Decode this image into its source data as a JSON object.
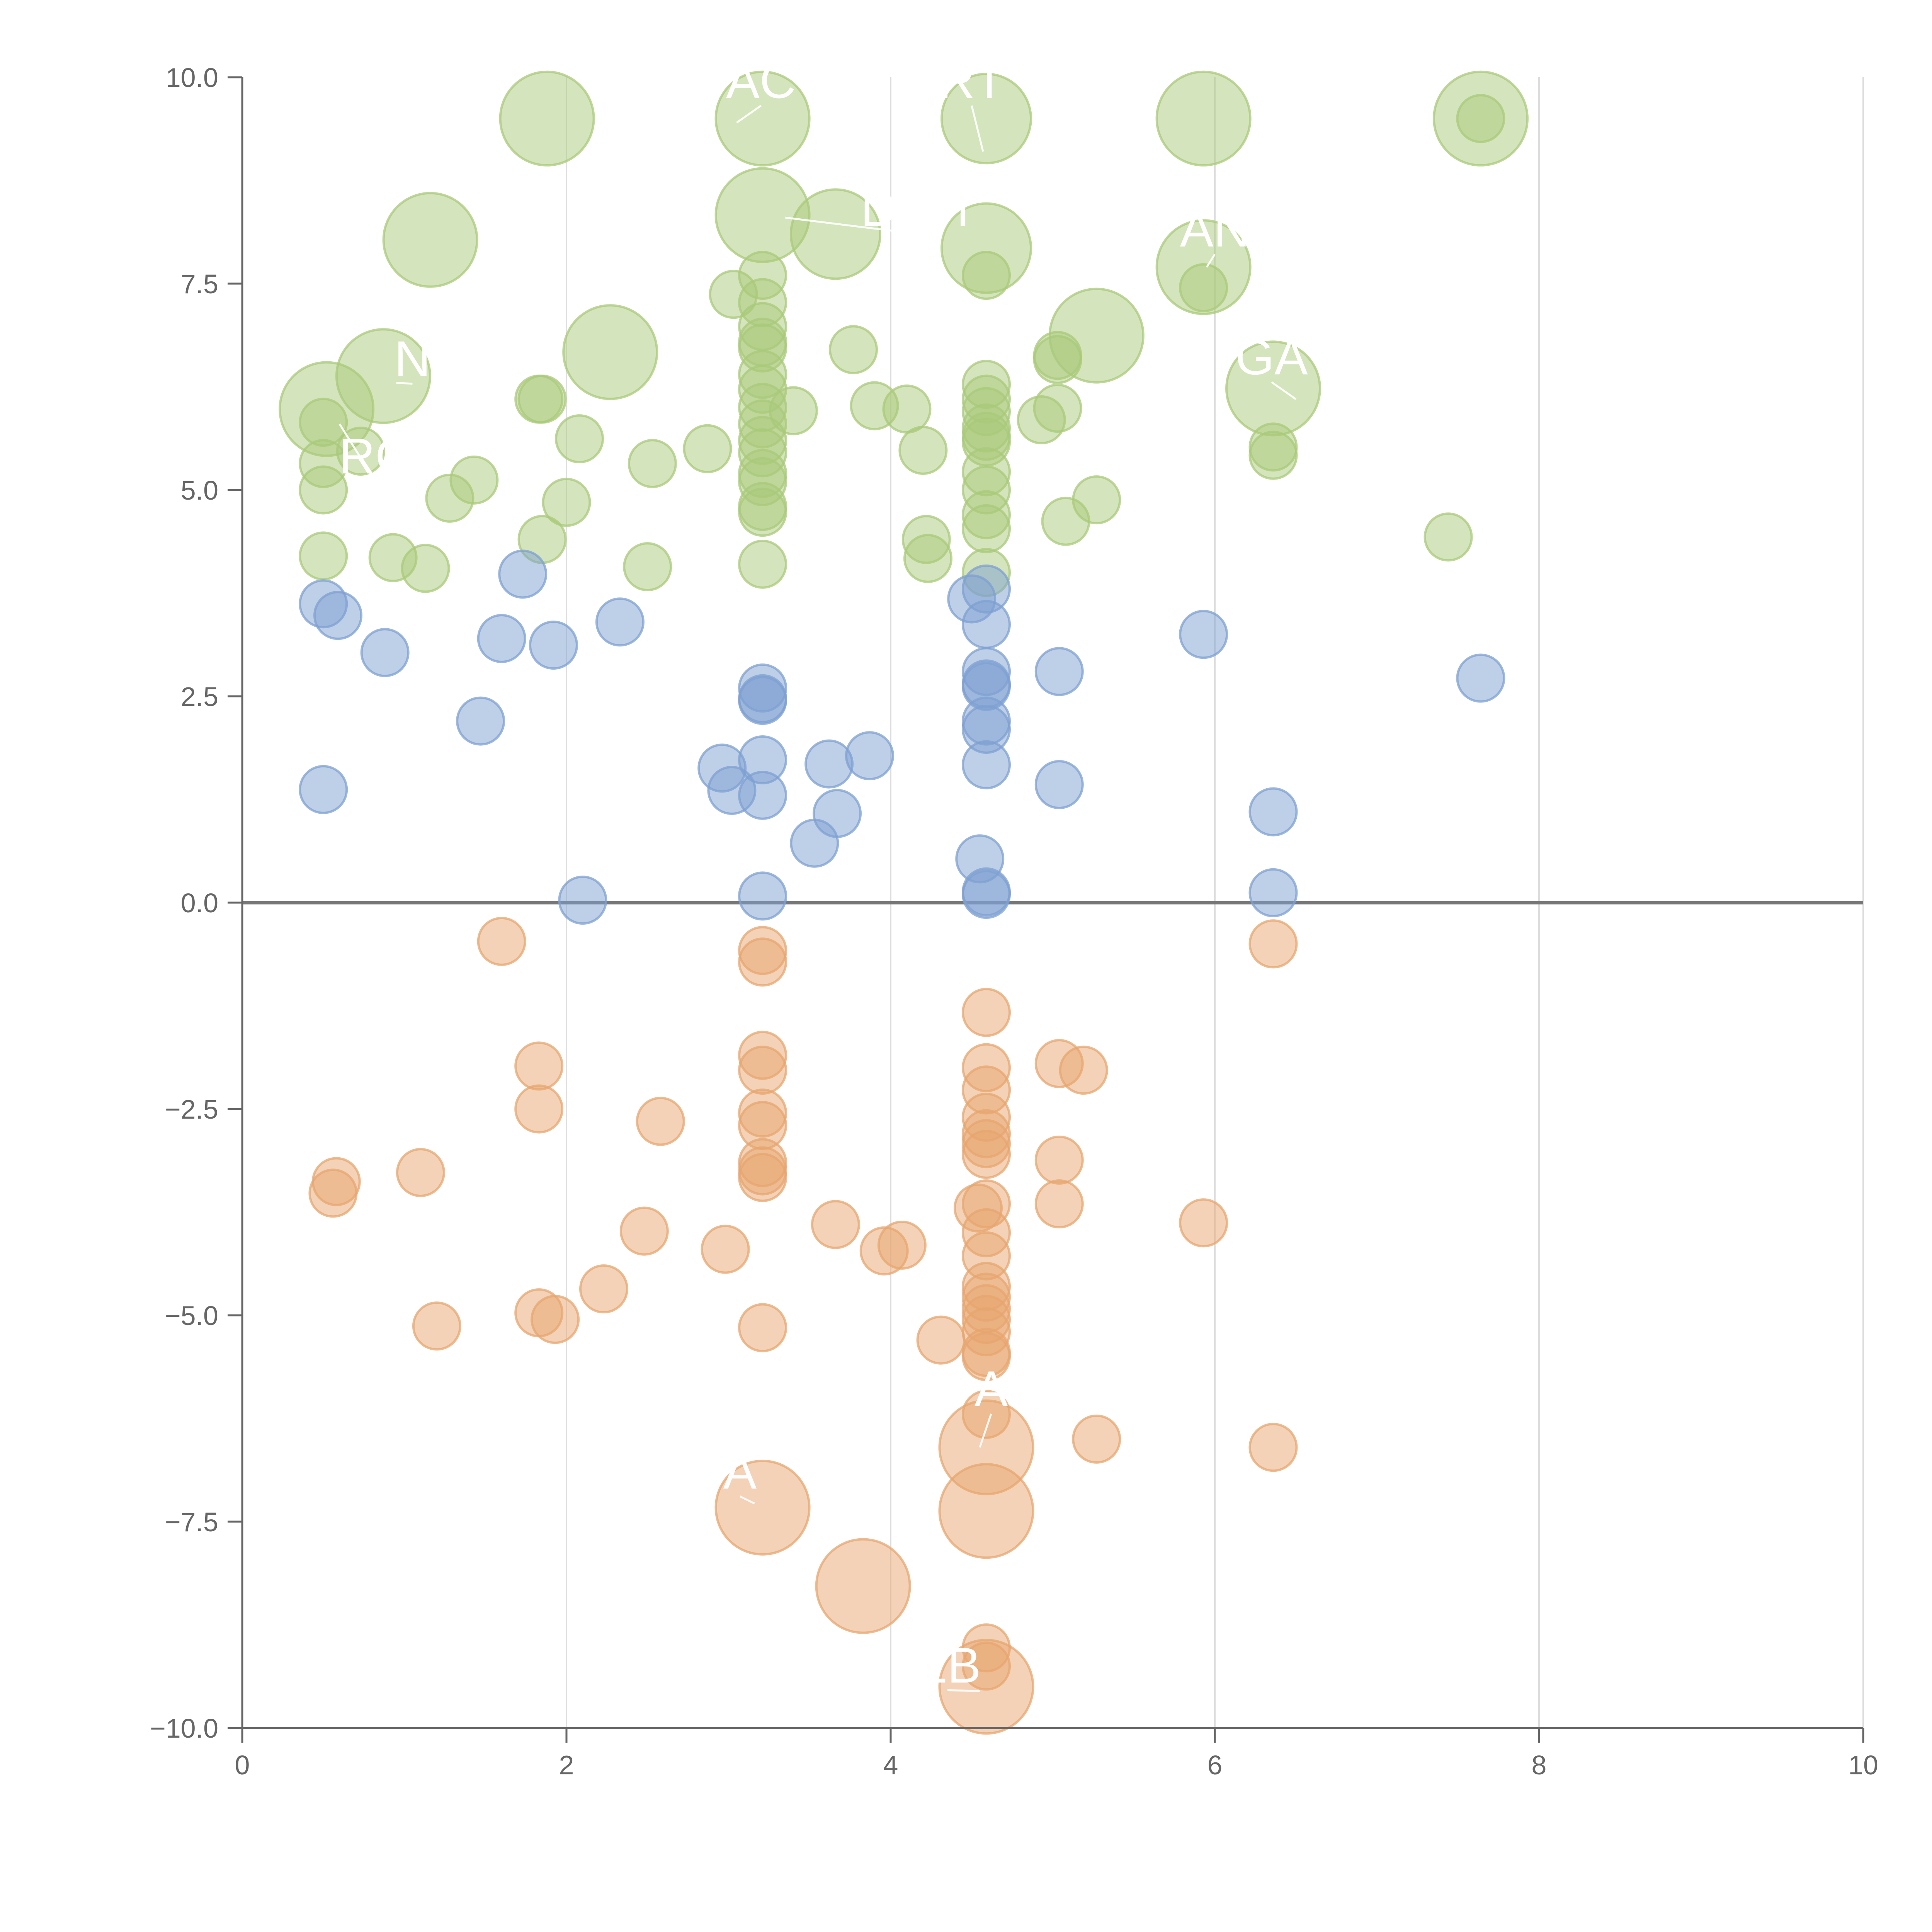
{
  "chart_data": {
    "type": "scatter",
    "title": "",
    "xlabel": "",
    "ylabel": "",
    "xlim": [
      0,
      10
    ],
    "ylim": [
      -10,
      10
    ],
    "x_ticks": [
      "0",
      "2",
      "4",
      "6",
      "8",
      "10"
    ],
    "y_ticks": [
      "−10.0",
      "−7.5",
      "−5.0",
      "−2.5",
      "0.0",
      "2.5",
      "5.0",
      "7.5",
      "10.0"
    ],
    "x_grid": true,
    "y_grid": false,
    "zero_line": true,
    "colors": {
      "positive_high": "#a9c97a",
      "positive_low": "#7da0d2",
      "negative": "#e7a66f",
      "axis": "#666666"
    },
    "series": [
      {
        "color_key": "positive_high",
        "points": [
          [
            1.88,
            9.5,
            2.2
          ],
          [
            3.21,
            9.5,
            2.2
          ],
          [
            4.59,
            9.5,
            2.1
          ],
          [
            5.93,
            9.5,
            2.2
          ],
          [
            7.64,
            9.5,
            2.2
          ],
          [
            7.64,
            9.5,
            1.1
          ],
          [
            1.16,
            8.03,
            2.2
          ],
          [
            3.21,
            8.33,
            2.2
          ],
          [
            3.66,
            8.1,
            2.1
          ],
          [
            4.59,
            7.93,
            2.1
          ],
          [
            5.93,
            7.7,
            2.2
          ],
          [
            5.93,
            7.45,
            1.1
          ],
          [
            0.52,
            5.98,
            2.2
          ],
          [
            0.87,
            6.38,
            2.2
          ],
          [
            2.27,
            6.67,
            2.2
          ],
          [
            5.27,
            6.87,
            2.2
          ],
          [
            6.36,
            6.23,
            2.2
          ],
          [
            3.21,
            7.6,
            1.1
          ],
          [
            3.21,
            7.27,
            1.1
          ],
          [
            3.21,
            6.98,
            1.1
          ],
          [
            3.21,
            6.79,
            1.1
          ],
          [
            3.21,
            6.72,
            1.1
          ],
          [
            3.21,
            6.4,
            1.1
          ],
          [
            3.21,
            6.22,
            1.1
          ],
          [
            3.21,
            6.0,
            1.1
          ],
          [
            3.21,
            5.8,
            1.1
          ],
          [
            3.21,
            5.6,
            1.1
          ],
          [
            3.21,
            5.45,
            1.1
          ],
          [
            3.21,
            5.2,
            1.1
          ],
          [
            3.21,
            5.1,
            1.1
          ],
          [
            3.21,
            4.8,
            1.1
          ],
          [
            3.21,
            4.73,
            1.1
          ],
          [
            3.21,
            4.1,
            1.1
          ],
          [
            4.59,
            7.6,
            1.1
          ],
          [
            4.59,
            6.28,
            1.1
          ],
          [
            4.59,
            6.1,
            1.1
          ],
          [
            4.59,
            5.95,
            1.1
          ],
          [
            4.59,
            5.75,
            1.1
          ],
          [
            4.59,
            5.65,
            1.1
          ],
          [
            4.59,
            5.58,
            1.1
          ],
          [
            4.59,
            5.22,
            1.1
          ],
          [
            4.59,
            5.0,
            1.1
          ],
          [
            4.59,
            4.7,
            1.1
          ],
          [
            4.59,
            4.53,
            1.1
          ],
          [
            4.59,
            4.0,
            1.1
          ],
          [
            3.03,
            7.37,
            1.1
          ],
          [
            3.4,
            5.96,
            1.1
          ],
          [
            3.77,
            6.7,
            1.1
          ],
          [
            3.9,
            6.02,
            1.1
          ],
          [
            4.1,
            5.98,
            1.1
          ],
          [
            4.2,
            5.48,
            1.1
          ],
          [
            4.22,
            4.4,
            1.1
          ],
          [
            4.23,
            4.17,
            1.1
          ],
          [
            0.5,
            5.82,
            1.1
          ],
          [
            0.5,
            5.32,
            1.1
          ],
          [
            0.5,
            5.0,
            1.1
          ],
          [
            0.5,
            4.2,
            1.1
          ],
          [
            0.73,
            5.47,
            1.1
          ],
          [
            0.93,
            4.18,
            1.1
          ],
          [
            1.13,
            4.05,
            1.1
          ],
          [
            1.28,
            4.9,
            1.1
          ],
          [
            1.43,
            5.12,
            1.1
          ],
          [
            1.83,
            6.1,
            1.1
          ],
          [
            1.85,
            6.1,
            1.1
          ],
          [
            1.85,
            4.4,
            1.1
          ],
          [
            2.0,
            4.85,
            1.1
          ],
          [
            2.08,
            5.62,
            1.1
          ],
          [
            2.5,
            4.07,
            1.1
          ],
          [
            2.53,
            5.32,
            1.1
          ],
          [
            2.87,
            5.5,
            1.1
          ],
          [
            4.93,
            5.85,
            1.1
          ],
          [
            5.03,
            6.63,
            1.1
          ],
          [
            5.03,
            6.58,
            1.1
          ],
          [
            5.03,
            5.99,
            1.1
          ],
          [
            5.08,
            4.62,
            1.1
          ],
          [
            5.27,
            4.88,
            1.1
          ],
          [
            6.36,
            5.52,
            1.1
          ],
          [
            6.36,
            5.42,
            1.1
          ],
          [
            7.44,
            4.43,
            1.1
          ]
        ]
      },
      {
        "color_key": "positive_low",
        "points": [
          [
            0.5,
            3.62,
            1.1
          ],
          [
            0.59,
            3.48,
            1.1
          ],
          [
            0.88,
            3.03,
            1.1
          ],
          [
            0.5,
            1.37,
            1.1
          ],
          [
            1.47,
            2.2,
            1.1
          ],
          [
            1.6,
            3.2,
            1.1
          ],
          [
            1.73,
            3.98,
            1.1
          ],
          [
            1.92,
            3.12,
            1.1
          ],
          [
            2.1,
            0.03,
            1.1
          ],
          [
            2.33,
            3.4,
            1.1
          ],
          [
            2.96,
            1.63,
            1.1
          ],
          [
            3.02,
            1.36,
            1.1
          ],
          [
            3.21,
            2.6,
            1.1
          ],
          [
            3.21,
            2.47,
            1.1
          ],
          [
            3.21,
            2.45,
            1.1
          ],
          [
            3.21,
            1.73,
            1.1
          ],
          [
            3.21,
            1.3,
            1.1
          ],
          [
            3.21,
            0.08,
            1.1
          ],
          [
            3.53,
            0.72,
            1.1
          ],
          [
            3.62,
            1.68,
            1.1
          ],
          [
            3.67,
            1.08,
            1.1
          ],
          [
            3.87,
            1.78,
            1.1
          ],
          [
            4.5,
            3.68,
            1.1
          ],
          [
            4.55,
            0.53,
            1.1
          ],
          [
            4.59,
            3.8,
            1.1
          ],
          [
            4.59,
            3.37,
            1.1
          ],
          [
            4.59,
            2.8,
            1.1
          ],
          [
            4.59,
            2.65,
            1.1
          ],
          [
            4.59,
            2.62,
            1.1
          ],
          [
            4.59,
            2.2,
            1.1
          ],
          [
            4.59,
            2.1,
            1.1
          ],
          [
            4.59,
            1.67,
            1.1
          ],
          [
            4.59,
            0.13,
            1.1
          ],
          [
            4.59,
            0.1,
            1.1
          ],
          [
            5.04,
            2.8,
            1.1
          ],
          [
            5.04,
            1.43,
            1.1
          ],
          [
            5.93,
            3.25,
            1.1
          ],
          [
            6.36,
            1.1,
            1.1
          ],
          [
            6.36,
            0.12,
            1.1
          ],
          [
            7.64,
            2.72,
            1.1
          ]
        ]
      },
      {
        "color_key": "negative",
        "points": [
          [
            1.6,
            -0.47,
            1.1
          ],
          [
            1.83,
            -1.98,
            1.1
          ],
          [
            1.83,
            -2.5,
            1.1
          ],
          [
            0.58,
            -3.38,
            1.1
          ],
          [
            0.56,
            -3.52,
            1.1
          ],
          [
            1.1,
            -3.27,
            1.1
          ],
          [
            1.2,
            -5.13,
            1.1
          ],
          [
            1.83,
            -4.97,
            1.1
          ],
          [
            1.93,
            -5.05,
            1.1
          ],
          [
            2.23,
            -4.68,
            1.1
          ],
          [
            2.48,
            -3.98,
            1.1
          ],
          [
            2.58,
            -2.65,
            1.1
          ],
          [
            2.98,
            -4.2,
            1.1
          ],
          [
            3.21,
            -0.58,
            1.1
          ],
          [
            3.21,
            -0.72,
            1.1
          ],
          [
            3.21,
            -1.85,
            1.1
          ],
          [
            3.21,
            -2.03,
            1.1
          ],
          [
            3.21,
            -2.55,
            1.1
          ],
          [
            3.21,
            -2.7,
            1.1
          ],
          [
            3.21,
            -3.15,
            1.1
          ],
          [
            3.21,
            -3.25,
            1.1
          ],
          [
            3.21,
            -3.33,
            1.1
          ],
          [
            3.21,
            -5.15,
            1.1
          ],
          [
            3.21,
            -7.33,
            2.2
          ],
          [
            3.66,
            -3.9,
            1.1
          ],
          [
            3.83,
            -8.28,
            2.2
          ],
          [
            3.96,
            -4.22,
            1.1
          ],
          [
            4.07,
            -4.15,
            1.1
          ],
          [
            4.31,
            -5.3,
            1.1
          ],
          [
            4.54,
            -3.7,
            1.1
          ],
          [
            4.59,
            -1.33,
            1.1
          ],
          [
            4.59,
            -2.0,
            1.1
          ],
          [
            4.59,
            -2.27,
            1.1
          ],
          [
            4.59,
            -2.6,
            1.1
          ],
          [
            4.59,
            -2.8,
            1.1
          ],
          [
            4.59,
            -2.92,
            1.1
          ],
          [
            4.59,
            -3.05,
            1.1
          ],
          [
            4.59,
            -3.65,
            1.1
          ],
          [
            4.59,
            -4.0,
            1.1
          ],
          [
            4.59,
            -4.28,
            1.1
          ],
          [
            4.59,
            -4.65,
            1.1
          ],
          [
            4.59,
            -4.78,
            1.1
          ],
          [
            4.59,
            -4.92,
            1.1
          ],
          [
            4.59,
            -5.05,
            1.1
          ],
          [
            4.59,
            -5.2,
            1.1
          ],
          [
            4.59,
            -5.45,
            1.1
          ],
          [
            4.59,
            -5.5,
            1.1
          ],
          [
            4.59,
            -6.2,
            1.1
          ],
          [
            4.59,
            -6.6,
            2.2
          ],
          [
            4.59,
            -7.37,
            2.2
          ],
          [
            4.59,
            -9.03,
            1.1
          ],
          [
            4.59,
            -9.25,
            1.1
          ],
          [
            4.59,
            -9.5,
            2.2
          ],
          [
            5.04,
            -1.95,
            1.1
          ],
          [
            5.04,
            -3.12,
            1.1
          ],
          [
            5.04,
            -3.65,
            1.1
          ],
          [
            5.19,
            -2.03,
            1.1
          ],
          [
            5.27,
            -6.5,
            1.1
          ],
          [
            5.93,
            -3.88,
            1.1
          ],
          [
            6.36,
            -0.5,
            1.1
          ],
          [
            6.36,
            -6.6,
            1.1
          ]
        ]
      }
    ],
    "annotations": [
      {
        "text": "AC",
        "x": 3.2,
        "y": 9.75,
        "anchor_x": 3.05,
        "anchor_y": 9.45
      },
      {
        "text": "RT",
        "x": 4.5,
        "y": 9.75,
        "anchor_x": 4.57,
        "anchor_y": 9.1
      },
      {
        "text": "DCH",
        "x": 4.15,
        "y": 8.2,
        "anchor_x": 3.35,
        "anchor_y": 8.3
      },
      {
        "text": "AN",
        "x": 6.0,
        "y": 7.95,
        "anchor_x": 5.95,
        "anchor_y": 7.7
      },
      {
        "text": "N",
        "x": 1.05,
        "y": 6.38,
        "anchor_x": 0.95,
        "anchor_y": 6.3
      },
      {
        "text": "GA",
        "x": 6.35,
        "y": 6.4,
        "anchor_x": 6.5,
        "anchor_y": 6.1
      },
      {
        "text": "RC",
        "x": 0.82,
        "y": 5.2,
        "anchor_x": 0.6,
        "anchor_y": 5.8
      },
      {
        "text": "A",
        "x": 4.62,
        "y": -6.1,
        "anchor_x": 4.55,
        "anchor_y": -6.6
      },
      {
        "text": "A",
        "x": 3.07,
        "y": -7.1,
        "anchor_x": 3.16,
        "anchor_y": -7.28
      },
      {
        "text": "EB",
        "x": 4.35,
        "y": -9.45,
        "anchor_x": 4.55,
        "anchor_y": -9.55
      }
    ]
  }
}
